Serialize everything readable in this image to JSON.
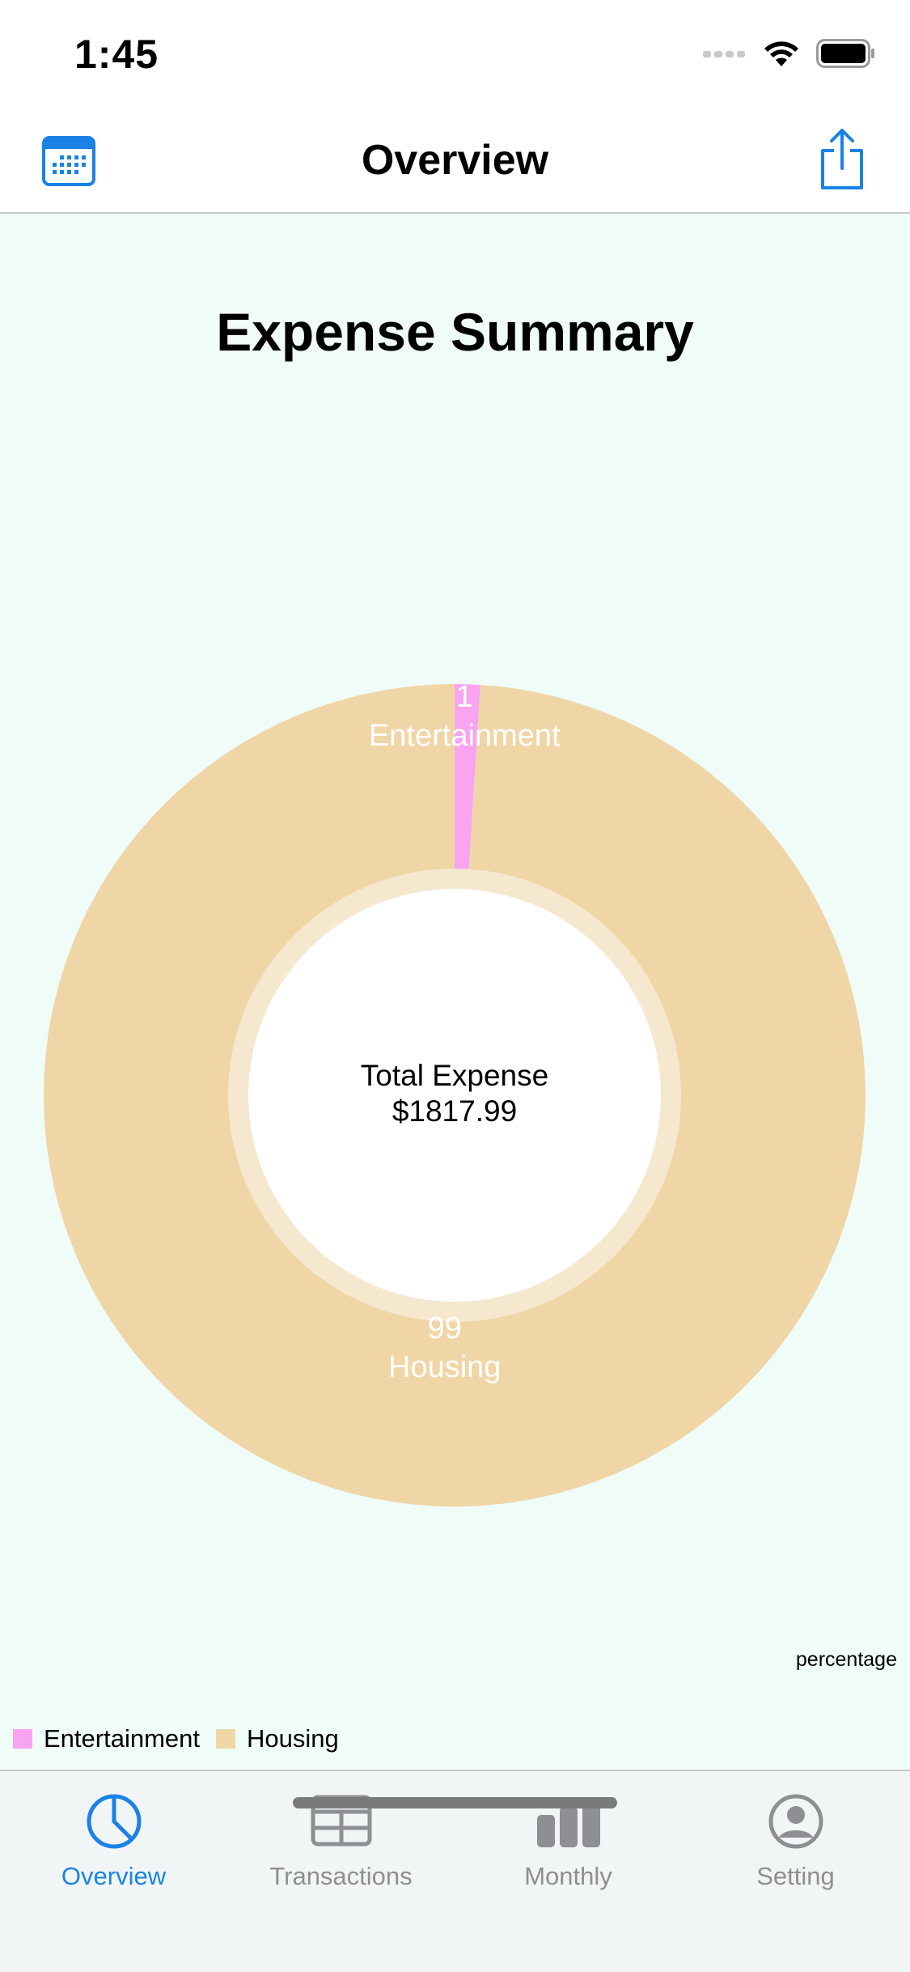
{
  "status_bar": {
    "time": "1:45"
  },
  "nav": {
    "title": "Overview",
    "left_icon": "calendar-icon",
    "right_icon": "share-icon"
  },
  "chart_data": {
    "type": "pie",
    "title": "Expense Summary",
    "center_text": {
      "line1": "Total Expense",
      "line2": "$1817.99"
    },
    "slices": [
      {
        "label": "Entertainment",
        "value": 1,
        "display_value": "1",
        "color": "#f8a4f0"
      },
      {
        "label": "Housing",
        "value": 99,
        "display_value": "99",
        "color": "#f0d6a6"
      }
    ],
    "description": "percentage",
    "legend": [
      "Entertainment",
      "Housing"
    ],
    "legend_position": "bottom-left"
  },
  "tabs": [
    {
      "label": "Overview",
      "icon": "pie-chart-icon",
      "active": true
    },
    {
      "label": "Transactions",
      "icon": "table-icon",
      "active": false
    },
    {
      "label": "Monthly",
      "icon": "bar-chart-icon",
      "active": false
    },
    {
      "label": "Setting",
      "icon": "person-circle-icon",
      "active": false
    }
  ],
  "colors": {
    "accent": "#1a82e6",
    "inactive_tab": "#8e8e93",
    "content_background": "#effcf8",
    "hole_ring": "#f5e8cf"
  }
}
